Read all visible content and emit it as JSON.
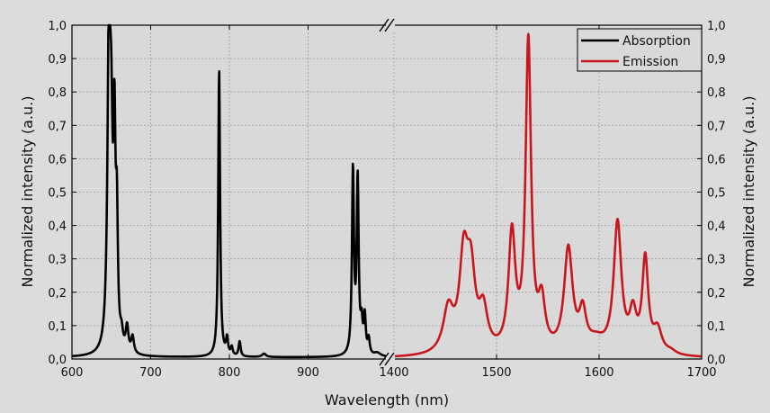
{
  "chart_data": {
    "type": "line",
    "xlabel": "Wavelength (nm)",
    "ylabel_left": "Normalized intensity (a.u.)",
    "ylabel_right": "Normalized intensity (a.u.)",
    "ylim": [
      0,
      1.0
    ],
    "y_ticks": [
      "0,0",
      "0,1",
      "0,2",
      "0,3",
      "0,4",
      "0,5",
      "0,6",
      "0,7",
      "0,8",
      "0,9",
      "1,0"
    ],
    "y_tick_values": [
      0,
      0.1,
      0.2,
      0.3,
      0.4,
      0.5,
      0.6,
      0.7,
      0.8,
      0.9,
      1.0
    ],
    "x_axis_broken": true,
    "x_segments": [
      {
        "range": [
          600,
          1000
        ],
        "ticks": [
          "600",
          "700",
          "800",
          "900"
        ],
        "tick_values": [
          600,
          700,
          800,
          900
        ]
      },
      {
        "range": [
          1400,
          1700
        ],
        "ticks": [
          "1400",
          "1500",
          "1600",
          "1700"
        ],
        "tick_values": [
          1400,
          1500,
          1600,
          1700
        ]
      }
    ],
    "grid": true,
    "legend_position": "top-right",
    "series": [
      {
        "name": "Absorption",
        "color": "#000000",
        "segment": 0,
        "baseline": 0.005,
        "peaks": [
          [
            647,
            0.94,
            2.2
          ],
          [
            650,
            0.5,
            2
          ],
          [
            654,
            0.58,
            1.5
          ],
          [
            657,
            0.36,
            1.5
          ],
          [
            663,
            0.04,
            2
          ],
          [
            670,
            0.075,
            2
          ],
          [
            677,
            0.05,
            2
          ],
          [
            787,
            0.86,
            1.4
          ],
          [
            797,
            0.05,
            1.5
          ],
          [
            803,
            0.025,
            1.5
          ],
          [
            813,
            0.045,
            1.5
          ],
          [
            844,
            0.01,
            3
          ],
          [
            957,
            0.55,
            1.5
          ],
          [
            963,
            0.52,
            1.5
          ],
          [
            968,
            0.08,
            1.5
          ],
          [
            972,
            0.11,
            1.5
          ],
          [
            977,
            0.045,
            1.5
          ],
          [
            988,
            0.01,
            5
          ]
        ]
      },
      {
        "name": "Emission",
        "color": "#c8161d",
        "segment": 1,
        "baseline": 0.002,
        "peaks": [
          [
            1453,
            0.13,
            6
          ],
          [
            1468,
            0.27,
            5
          ],
          [
            1475,
            0.22,
            5
          ],
          [
            1487,
            0.12,
            5
          ],
          [
            1515,
            0.35,
            4
          ],
          [
            1531,
            0.925,
            3.2
          ],
          [
            1544,
            0.14,
            4
          ],
          [
            1570,
            0.31,
            5
          ],
          [
            1584,
            0.11,
            4
          ],
          [
            1597,
            0.035,
            10
          ],
          [
            1618,
            0.39,
            4.5
          ],
          [
            1633,
            0.11,
            4
          ],
          [
            1645,
            0.28,
            3.5
          ],
          [
            1657,
            0.07,
            5
          ],
          [
            1670,
            0.01,
            6
          ]
        ]
      }
    ]
  }
}
